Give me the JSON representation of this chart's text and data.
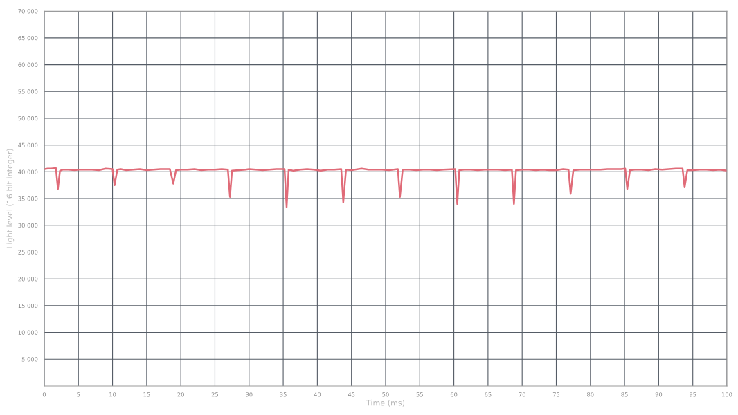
{
  "chart_data": {
    "type": "line",
    "xlabel": "Time (ms)",
    "ylabel": "Light level (16 bit integer)",
    "x": [
      0,
      0.5,
      1,
      1.7,
      2.0,
      2.3,
      2.7,
      3.5,
      4.5,
      5,
      6,
      7,
      8,
      9,
      10,
      10.3,
      10.7,
      11.2,
      12,
      13,
      14,
      15,
      16,
      17,
      18.4,
      18.9,
      19.3,
      20,
      21,
      22,
      23,
      24,
      25,
      26,
      26.9,
      27.2,
      27.5,
      28.5,
      29.5,
      30,
      31,
      32,
      33,
      34,
      35.2,
      35.5,
      35.8,
      36.5,
      37.5,
      38.5,
      39.5,
      40.5,
      41.5,
      42.5,
      43.5,
      43.8,
      44.2,
      45,
      46.5,
      47.5,
      48.5,
      49.5,
      50.5,
      51.8,
      52.1,
      52.5,
      53.5,
      54.5,
      55.5,
      56.5,
      57.5,
      58.5,
      60.2,
      60.5,
      60.8,
      61.5,
      62.5,
      63.5,
      64.5,
      65.5,
      66.5,
      67.5,
      68.5,
      68.8,
      69.1,
      70,
      71,
      72,
      73,
      74,
      75,
      76,
      76.8,
      77.1,
      77.5,
      78.5,
      79.5,
      80.5,
      81.5,
      82.5,
      83.5,
      84.5,
      85.1,
      85.4,
      85.8,
      86.5,
      87.5,
      88.5,
      89.5,
      90.5,
      91.5,
      92.5,
      93.5,
      93.8,
      94.2,
      95,
      96,
      97,
      98,
      99,
      100
    ],
    "series": [
      {
        "color": "#e06b78",
        "values": [
          40500,
          40600,
          40600,
          40700,
          36800,
          40200,
          40400,
          40400,
          40300,
          40400,
          40400,
          40400,
          40300,
          40600,
          40500,
          37500,
          40400,
          40500,
          40300,
          40400,
          40500,
          40300,
          40400,
          40500,
          40500,
          37800,
          40300,
          40400,
          40400,
          40500,
          40300,
          40400,
          40400,
          40500,
          40400,
          35300,
          40200,
          40300,
          40400,
          40500,
          40400,
          40300,
          40400,
          40500,
          40500,
          33400,
          40400,
          40200,
          40400,
          40500,
          40400,
          40200,
          40400,
          40400,
          40500,
          34300,
          40400,
          40300,
          40600,
          40400,
          40400,
          40400,
          40300,
          40500,
          35300,
          40400,
          40400,
          40300,
          40400,
          40400,
          40300,
          40400,
          40500,
          34000,
          40300,
          40400,
          40400,
          40300,
          40400,
          40400,
          40400,
          40300,
          40400,
          34000,
          40300,
          40400,
          40400,
          40300,
          40400,
          40300,
          40300,
          40500,
          40400,
          35900,
          40300,
          40400,
          40400,
          40400,
          40400,
          40500,
          40500,
          40500,
          40600,
          36800,
          40300,
          40400,
          40400,
          40300,
          40500,
          40400,
          40500,
          40600,
          40600,
          37100,
          40300,
          40300,
          40400,
          40400,
          40300,
          40400,
          40200
        ]
      }
    ],
    "xlim": [
      0,
      100
    ],
    "xticks": [
      0,
      5,
      10,
      15,
      20,
      25,
      30,
      35,
      40,
      45,
      50,
      55,
      60,
      65,
      70,
      75,
      80,
      85,
      90,
      95,
      100
    ],
    "ylim": [
      0,
      70000
    ],
    "yticks": [
      {
        "value": 5000,
        "label": "5 000"
      },
      {
        "value": 10000,
        "label": "10 000"
      },
      {
        "value": 15000,
        "label": "15 000"
      },
      {
        "value": 20000,
        "label": "20 000"
      },
      {
        "value": 25000,
        "label": "25 000"
      },
      {
        "value": 30000,
        "label": "30 000"
      },
      {
        "value": 35000,
        "label": "35 000"
      },
      {
        "value": 40000,
        "label": "40 000"
      },
      {
        "value": 45000,
        "label": "45 000"
      },
      {
        "value": 50000,
        "label": "50 000"
      },
      {
        "value": 55000,
        "label": "55 000"
      },
      {
        "value": 60000,
        "label": "60 000"
      },
      {
        "value": 65000,
        "label": "65 000"
      },
      {
        "value": 70000,
        "label": "70 000"
      }
    ],
    "grid": true,
    "marker": "none",
    "line_style": "solid"
  }
}
